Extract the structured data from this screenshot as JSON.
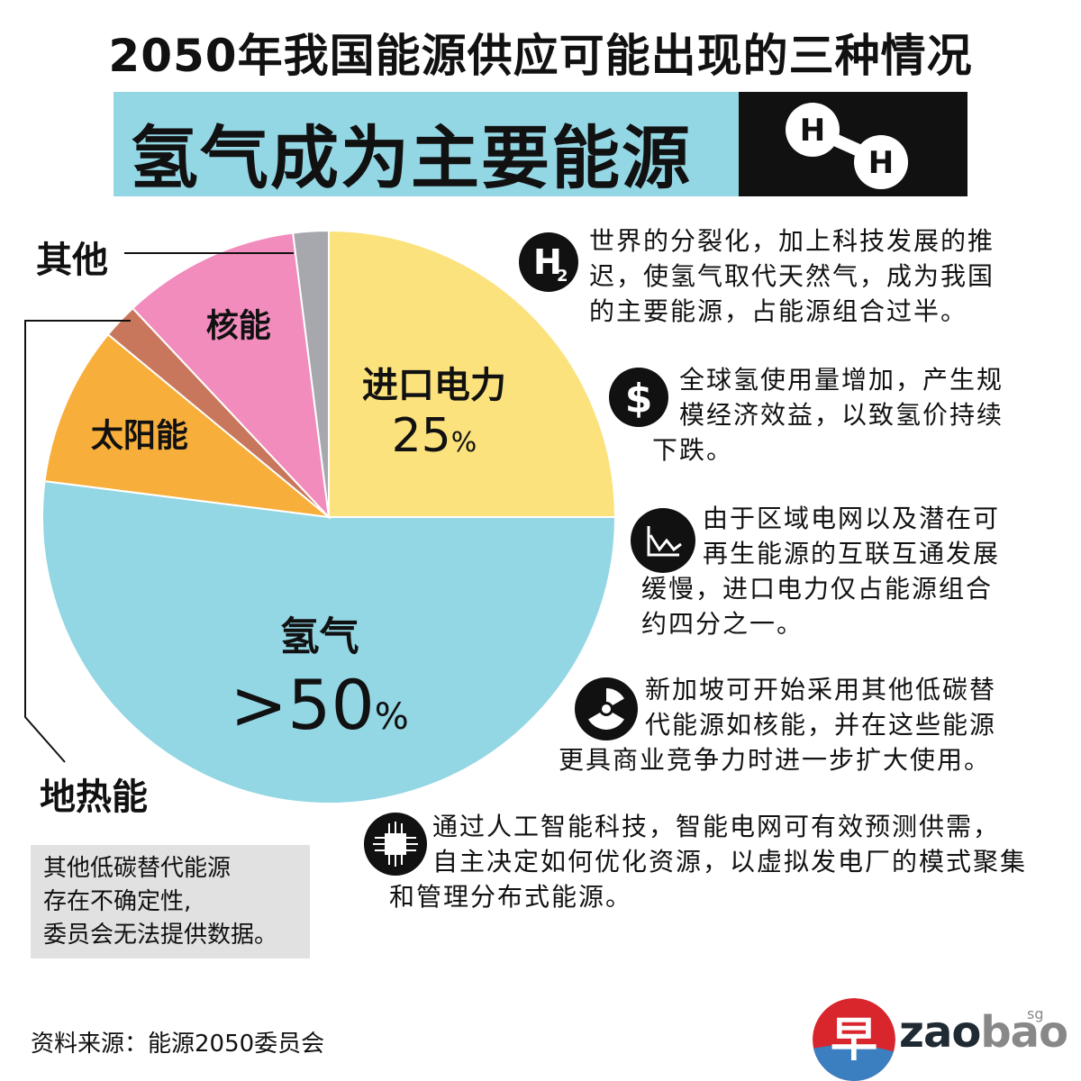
{
  "header": {
    "title": "2050年我国能源供应可能出现的三种情况",
    "banner": "氢气成为主要能源",
    "molecule_atoms": [
      "H",
      "H"
    ]
  },
  "chart_data": {
    "type": "pie",
    "slices": [
      {
        "name": "进口电力",
        "value": 25,
        "label": "进口电力",
        "pct_num": "25",
        "pct_unit": "%",
        "color": "#fbe27c"
      },
      {
        "name": "氢气",
        "value": 52,
        "label": "氢气",
        "pct_num": ">50",
        "pct_unit": "%",
        "color": "#93d6e4"
      },
      {
        "name": "太阳能",
        "value": 9,
        "label": "太阳能",
        "color": "#f8ae3b"
      },
      {
        "name": "地热能",
        "value": 2,
        "label": "",
        "color": "#c9775c"
      },
      {
        "name": "核能",
        "value": 10,
        "label": "核能",
        "color": "#f18cbd"
      },
      {
        "name": "其他",
        "value": 2,
        "label": "",
        "color": "#a6a8ad"
      }
    ]
  },
  "callouts": {
    "other": "其他",
    "geothermal": "地热能"
  },
  "notes": [
    {
      "icon": "h2-icon",
      "lines": [
        "世界的分裂化，加上科技发展的推",
        "迟，使氢气取代天然气，成为我国",
        "的主要能源，占能源组合过半。"
      ]
    },
    {
      "icon": "dollar-icon",
      "lines": [
        "全球氢使用量增加，产生规",
        "模经济效益，以致氢价持续",
        "下跌。"
      ]
    },
    {
      "icon": "chart-down-icon",
      "lines": [
        "由于区域电网以及潜在可",
        "再生能源的互联互通发展",
        " 缓慢，进口电力仅占能源组合",
        "约四分之一。"
      ]
    },
    {
      "icon": "radiation-icon",
      "lines": [
        "新加坡可开始采用其他低碳替",
        "代能源如核能，并在这些能源",
        "更具商业竞争力时进一步扩大使用。"
      ]
    },
    {
      "icon": "chip-icon",
      "lines": [
        " 通过人工智能科技，智能电网可有效预测供需，",
        "自主决定如何优化资源，以虚拟发电厂的模式聚集",
        "和管理分布式能源。"
      ]
    }
  ],
  "disclaimer": [
    "其他低碳替代能源",
    "存在不确定性,",
    "委员会无法提供数据。"
  ],
  "source": "资料来源：能源2050委员会",
  "logo": {
    "glyph": "早",
    "text_bold": "zao",
    "text_light": "bao",
    "suffix": "sg"
  }
}
